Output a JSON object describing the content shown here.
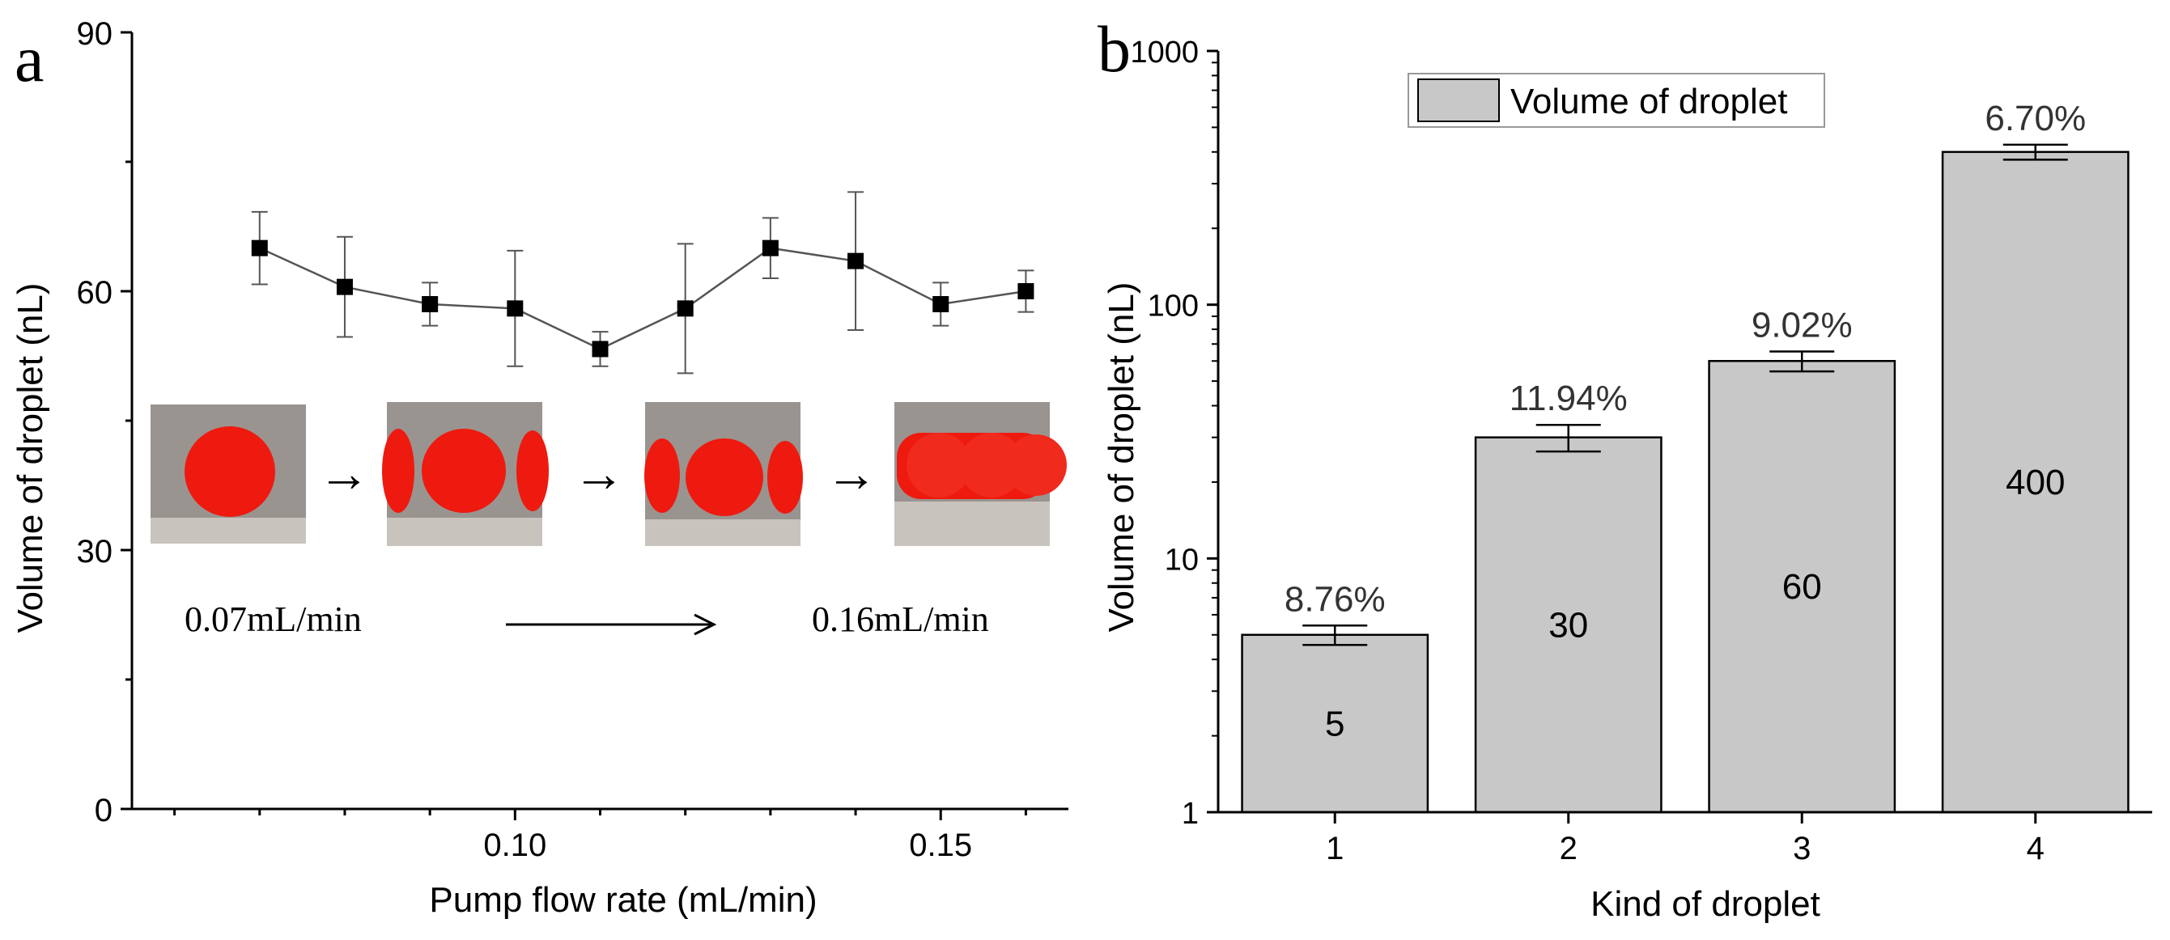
{
  "panel_a": {
    "letter": "a",
    "inset": {
      "start_label": "0.07mL/min",
      "end_label": "0.16mL/min",
      "arrow_glyph": "→",
      "droplet_color": "#ee1a0f",
      "channel_color": "#9a9490"
    }
  },
  "panel_b": {
    "letter": "b",
    "bar_color": "#c8c8c8"
  },
  "chart_data": [
    {
      "type": "scatter",
      "xlabel": "Pump flow rate (mL/min)",
      "ylabel": "Volume of droplet (nL)",
      "xlim": [
        0.055,
        0.165
      ],
      "ylim": [
        0,
        90
      ],
      "xticks": [
        0.1,
        0.15
      ],
      "xtick_labels": [
        "0.10",
        "0.15"
      ],
      "yticks": [
        0,
        30,
        60,
        90
      ],
      "ytick_labels": [
        "0",
        "30",
        "60",
        "90"
      ],
      "grid": false,
      "series": [
        {
          "x": [
            0.07,
            0.08,
            0.09,
            0.1,
            0.11,
            0.12,
            0.13,
            0.14,
            0.15,
            0.16
          ],
          "y": [
            65.0,
            60.5,
            58.5,
            58.0,
            53.3,
            58.0,
            65.0,
            63.5,
            58.5,
            60.0
          ],
          "err": [
            4.2,
            5.8,
            2.5,
            6.7,
            2.0,
            7.5,
            3.5,
            8.0,
            2.5,
            2.4
          ],
          "marker": "square",
          "line": true
        }
      ]
    },
    {
      "type": "bar",
      "xlabel": "Kind of droplet",
      "ylabel": "Volume of droplet (nL)",
      "yscale": "log",
      "ylim": [
        1,
        1000
      ],
      "yticks": [
        1,
        10,
        100,
        1000
      ],
      "ytick_labels": [
        "1",
        "10",
        "100",
        "1000"
      ],
      "categories": [
        "1",
        "2",
        "3",
        "4"
      ],
      "grid": false,
      "legend": {
        "position": "top-left",
        "entries": [
          "Volume of droplet"
        ]
      },
      "series": [
        {
          "name": "Volume of droplet",
          "values": [
            5,
            30,
            60,
            400
          ],
          "value_labels": [
            "5",
            "30",
            "60",
            "400"
          ],
          "err_low": [
            4.56,
            26.4,
            54.6,
            373
          ],
          "err_high": [
            5.44,
            33.6,
            65.4,
            427
          ],
          "annotations": [
            "8.76%",
            "11.94%",
            "9.02%",
            "6.70%"
          ]
        }
      ]
    }
  ]
}
